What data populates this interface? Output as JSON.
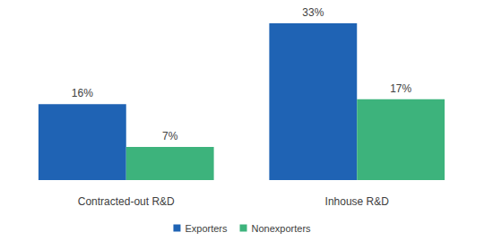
{
  "chart_data": {
    "type": "bar",
    "categories": [
      "Contracted-out R&D",
      "Inhouse R&D"
    ],
    "series": [
      {
        "name": "Exporters",
        "color": "#1f63b4",
        "values": [
          16,
          33
        ],
        "value_labels": [
          "16%",
          "33%"
        ]
      },
      {
        "name": "Nonexporters",
        "color": "#3db37c",
        "values": [
          7,
          17
        ],
        "value_labels": [
          "7%",
          "17%"
        ]
      }
    ],
    "ylim": [
      0,
      33
    ],
    "data_labels": true,
    "tick_labels": "x",
    "grid": false,
    "legend": "bottom"
  }
}
